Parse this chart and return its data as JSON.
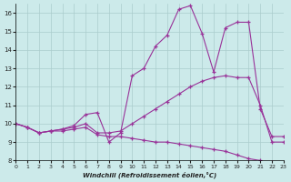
{
  "xlabel": "Windchill (Refroidissement éolien,°C)",
  "background_color": "#cceaea",
  "line_color": "#993399",
  "grid_color": "#aacccc",
  "xmin": 0,
  "xmax": 23,
  "ymin": 8,
  "ymax": 16.5,
  "yticks": [
    8,
    9,
    10,
    11,
    12,
    13,
    14,
    15,
    16
  ],
  "xticks": [
    0,
    1,
    2,
    3,
    4,
    5,
    6,
    7,
    8,
    9,
    10,
    11,
    12,
    13,
    14,
    15,
    16,
    17,
    18,
    19,
    20,
    21,
    22,
    23
  ],
  "series": [
    {
      "x": [
        0,
        1,
        2,
        3,
        4,
        5,
        6,
        7,
        8,
        9,
        10,
        11,
        12,
        13,
        14,
        15,
        16,
        17,
        18,
        19,
        20,
        21,
        22,
        23
      ],
      "y": [
        10.0,
        9.8,
        9.5,
        9.6,
        9.6,
        9.7,
        9.8,
        9.4,
        9.3,
        9.3,
        9.2,
        9.1,
        9.0,
        9.0,
        8.9,
        8.8,
        8.7,
        8.6,
        8.5,
        8.3,
        8.1,
        8.0,
        7.9,
        7.8
      ]
    },
    {
      "x": [
        0,
        1,
        2,
        3,
        4,
        5,
        6,
        7,
        8,
        9,
        10,
        11,
        12,
        13,
        14,
        15,
        16,
        17,
        18,
        19,
        20,
        21,
        22,
        23
      ],
      "y": [
        10.0,
        9.8,
        9.5,
        9.6,
        9.7,
        9.8,
        10.0,
        9.5,
        9.5,
        9.6,
        10.0,
        10.4,
        10.8,
        11.2,
        11.6,
        12.0,
        12.3,
        12.5,
        12.6,
        12.5,
        12.5,
        11.0,
        9.0,
        9.0
      ]
    },
    {
      "x": [
        0,
        1,
        2,
        3,
        4,
        5,
        6,
        7,
        8,
        9,
        10,
        11,
        12,
        13,
        14,
        15,
        16,
        17,
        18,
        19,
        20,
        21,
        22,
        23
      ],
      "y": [
        10.0,
        9.8,
        9.5,
        9.6,
        9.7,
        9.9,
        10.5,
        10.6,
        9.0,
        9.5,
        12.6,
        13.0,
        14.2,
        14.8,
        16.2,
        16.4,
        14.9,
        12.8,
        15.2,
        15.5,
        15.5,
        10.8,
        9.3,
        9.3
      ]
    }
  ]
}
